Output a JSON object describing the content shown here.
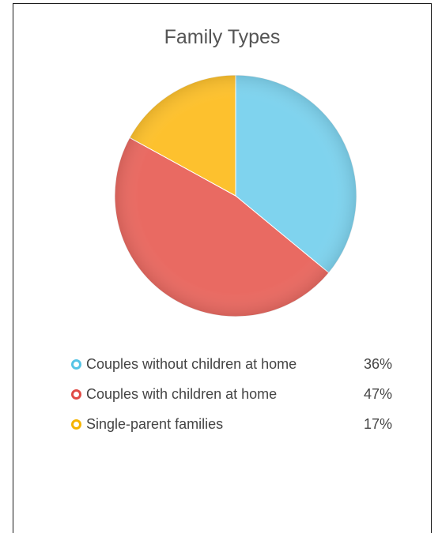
{
  "chart_data": {
    "type": "pie",
    "title": "Family Types",
    "slices": [
      {
        "label": "Couples without children at home",
        "value": 36,
        "display": "36%",
        "color": "#7FD3EE",
        "marker_color": "#56C4E6"
      },
      {
        "label": "Couples with children at home",
        "value": 47,
        "display": "47%",
        "color": "#E96A62",
        "marker_color": "#E04B46"
      },
      {
        "label": "Single-parent families",
        "value": 17,
        "display": "17%",
        "color": "#FDC12E",
        "marker_color": "#F5B400"
      }
    ],
    "legend_position": "bottom"
  }
}
